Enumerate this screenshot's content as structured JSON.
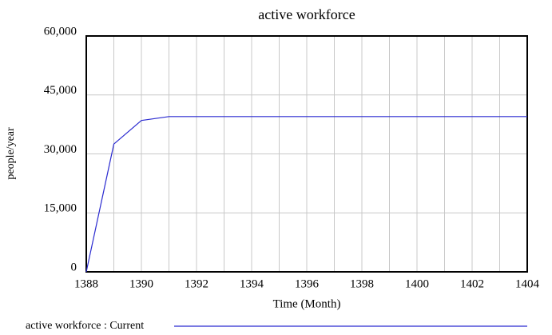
{
  "chart_data": {
    "type": "line",
    "title": "active workforce",
    "x_label": "Time (Month)",
    "y_label": "people/year",
    "x": [
      1388,
      1389,
      1390,
      1391,
      1392,
      1393,
      1394,
      1395,
      1396,
      1397,
      1398,
      1399,
      1400,
      1401,
      1402,
      1403,
      1404
    ],
    "series": [
      {
        "name": "active workforce : Current",
        "color": "#2b2bd0",
        "values": [
          0,
          32500,
          38500,
          39500,
          39500,
          39500,
          39500,
          39500,
          39500,
          39500,
          39500,
          39500,
          39500,
          39500,
          39500,
          39500,
          39500
        ]
      }
    ],
    "xlim": [
      1388,
      1404
    ],
    "xticks": [
      1388,
      1390,
      1392,
      1394,
      1396,
      1398,
      1400,
      1402,
      1404
    ],
    "xgrid": [
      1389,
      1390,
      1391,
      1392,
      1393,
      1394,
      1395,
      1396,
      1397,
      1398,
      1399,
      1400,
      1401,
      1402,
      1403
    ],
    "ylim": [
      0,
      60000
    ],
    "yticks": [
      0,
      {
        "value": 15000,
        "label": "15,000"
      },
      {
        "value": 30000,
        "label": "30,000"
      },
      {
        "value": 45000,
        "label": "45,000"
      },
      {
        "value": 60000,
        "label": "60,000"
      }
    ],
    "grid": true,
    "legend": "bottom"
  }
}
